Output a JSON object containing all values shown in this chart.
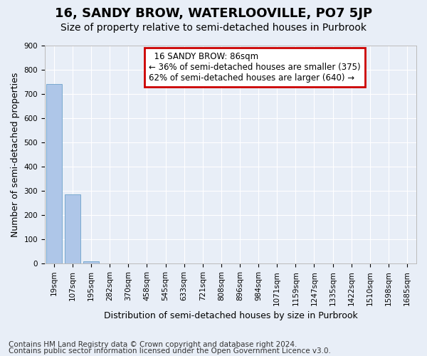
{
  "title": "16, SANDY BROW, WATERLOOVILLE, PO7 5JP",
  "subtitle": "Size of property relative to semi-detached houses in Purbrook",
  "xlabel": "Distribution of semi-detached houses by size in Purbrook",
  "ylabel": "Number of semi-detached properties",
  "footer_line1": "Contains HM Land Registry data © Crown copyright and database right 2024.",
  "footer_line2": "Contains public sector information licensed under the Open Government Licence v3.0.",
  "annotation_line1": "16 SANDY BROW: 86sqm",
  "annotation_line2": "← 36% of semi-detached houses are smaller (375)",
  "annotation_line3": "62% of semi-detached houses are larger (640) →",
  "bin_labels": [
    "19sqm",
    "107sqm",
    "195sqm",
    "282sqm",
    "370sqm",
    "458sqm",
    "545sqm",
    "633sqm",
    "721sqm",
    "808sqm",
    "896sqm",
    "984sqm",
    "1071sqm",
    "1159sqm",
    "1247sqm",
    "1335sqm",
    "1422sqm",
    "1510sqm",
    "1598sqm",
    "1685sqm"
  ],
  "bar_heights": [
    740,
    285,
    10,
    0,
    0,
    0,
    0,
    0,
    0,
    0,
    0,
    0,
    0,
    0,
    0,
    0,
    0,
    0,
    0,
    0
  ],
  "bar_color": "#aec6e8",
  "background_color": "#e8eef7",
  "plot_bg_color": "#e8eef7",
  "ylim": [
    0,
    900
  ],
  "yticks": [
    0,
    100,
    200,
    300,
    400,
    500,
    600,
    700,
    800,
    900
  ],
  "annotation_box_color": "#cc0000",
  "property_bar_index": 1,
  "title_fontsize": 13,
  "subtitle_fontsize": 10,
  "axis_label_fontsize": 9,
  "tick_fontsize": 7.5,
  "annotation_fontsize": 8.5,
  "footer_fontsize": 7.5
}
